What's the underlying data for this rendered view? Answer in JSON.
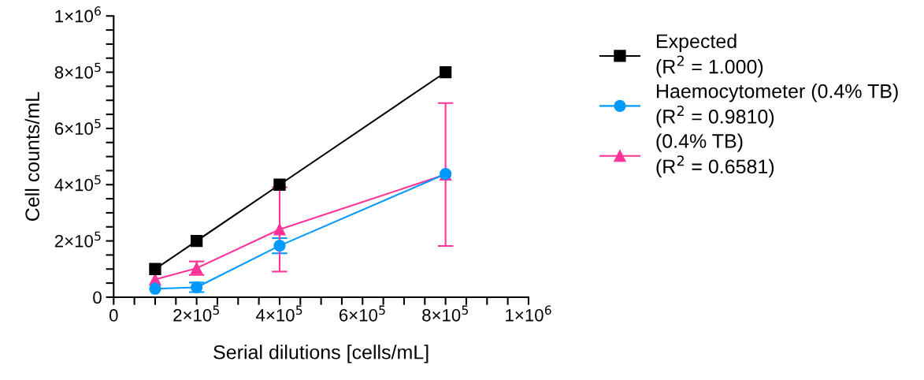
{
  "chart_data": {
    "type": "line",
    "xlabel": "Serial dilutions [cells/mL]",
    "ylabel": "Cell counts/mL",
    "xlim": [
      0,
      1000000
    ],
    "ylim": [
      0,
      1000000
    ],
    "xticks": [
      0,
      {
        "value": 50000,
        "label": null
      },
      {
        "value": 100000,
        "label": null
      },
      {
        "value": 150000,
        "label": null
      },
      {
        "value": 200000,
        "label": "2×10$^{5}$"
      },
      {
        "value": 250000,
        "label": null
      },
      {
        "value": 300000,
        "label": null
      },
      {
        "value": 350000,
        "label": null
      },
      {
        "value": 400000,
        "label": "4×10$^{5}$"
      },
      {
        "value": 450000,
        "label": null
      },
      {
        "value": 500000,
        "label": null
      },
      {
        "value": 550000,
        "label": null
      },
      {
        "value": 600000,
        "label": "6×10$^{5}$"
      },
      {
        "value": 650000,
        "label": null
      },
      {
        "value": 700000,
        "label": null
      },
      {
        "value": 750000,
        "label": null
      },
      {
        "value": 800000,
        "label": "8×10$^{5}$"
      },
      {
        "value": 850000,
        "label": null
      },
      {
        "value": 900000,
        "label": null
      },
      {
        "value": 950000,
        "label": null
      },
      {
        "value": 1000000,
        "label": "1×10$^{6}$"
      }
    ],
    "yticks": [
      0,
      {
        "value": 50000,
        "label": null
      },
      {
        "value": 100000,
        "label": null
      },
      {
        "value": 150000,
        "label": null
      },
      {
        "value": 200000,
        "label": "2×10$^{5}$"
      },
      {
        "value": 250000,
        "label": null
      },
      {
        "value": 300000,
        "label": null
      },
      {
        "value": 350000,
        "label": null
      },
      {
        "value": 400000,
        "label": "4×10$^{5}$"
      },
      {
        "value": 450000,
        "label": null
      },
      {
        "value": 500000,
        "label": null
      },
      {
        "value": 550000,
        "label": null
      },
      {
        "value": 600000,
        "label": "6×10$^{5}$"
      },
      {
        "value": 650000,
        "label": null
      },
      {
        "value": 700000,
        "label": null
      },
      {
        "value": 750000,
        "label": null
      },
      {
        "value": 800000,
        "label": "8×10$^{5}$"
      },
      {
        "value": 850000,
        "label": null
      },
      {
        "value": 900000,
        "label": null
      },
      {
        "value": 950000,
        "label": null
      },
      {
        "value": 1000000,
        "label": "1×10$^{6}$"
      }
    ],
    "x": [
      100000,
      200000,
      400000,
      800000
    ],
    "grid": false,
    "legend": "right",
    "line_style": "solid",
    "series": [
      {
        "name": "Expected\n(R$^{2}$ = 1.000)",
        "color": "#000000",
        "marker": "square",
        "values": [
          100000,
          200000,
          400000,
          800000
        ]
      },
      {
        "name": "Haemocytometer (0.4% TB)\n(R$^{2}$ = 0.9810)",
        "color": "#0099ff",
        "marker": "circle",
        "values": [
          30000,
          35000,
          183000,
          438000
        ],
        "errors": [
          null,
          17000,
          27000,
          null
        ]
      },
      {
        "name": "(0.4% TB)\n(R$^{2}$ = 0.6581)",
        "color": "#ff3399",
        "marker": "triangle",
        "values": [
          63000,
          103000,
          241000,
          436000
        ],
        "errors": [
          null,
          24000,
          150000,
          254000
        ]
      }
    ]
  }
}
